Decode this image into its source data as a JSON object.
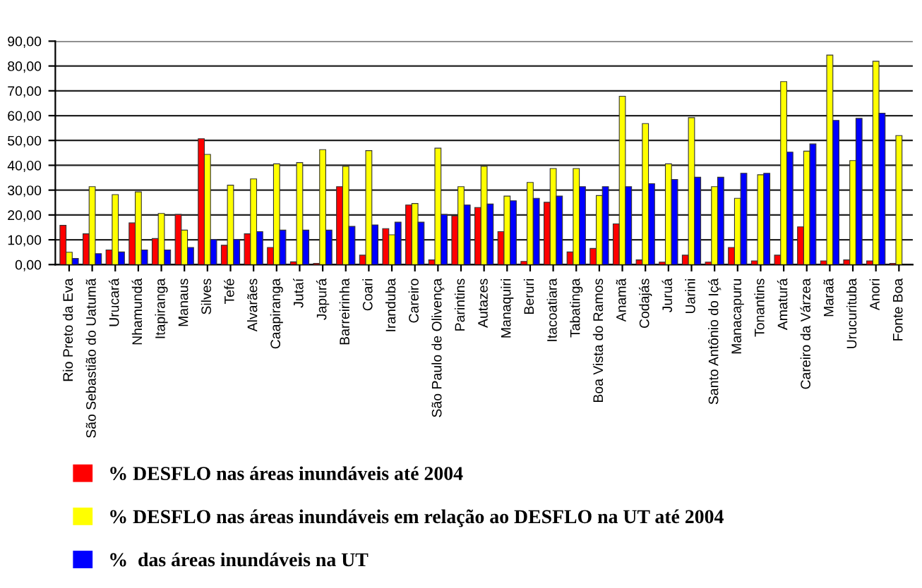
{
  "chart_data": {
    "type": "bar",
    "categories": [
      "Rio Preto da Eva",
      "São Sebastião do Uatumã",
      "Urucará",
      "Nhamundá",
      "Itapiranga",
      "Manaus",
      "Silves",
      "Tefé",
      "Alvarães",
      "Caapiranga",
      "Jutaí",
      "Japurá",
      "Barreirinha",
      "Coari",
      "Iranduba",
      "Careiro",
      "São Paulo de Olivença",
      "Parintins",
      "Autazes",
      "Manaquiri",
      "Beruri",
      "Itacoatiara",
      "Tabatinga",
      "Boa Vista do Ramos",
      "Anamã",
      "Codajás",
      "Juruá",
      "Uarini",
      "Santo Antônio do Içá",
      "Manacapuru",
      "Tonantins",
      "Amaturá",
      "Careiro da Várzea",
      "Maraã",
      "Urucurituba",
      "Anori",
      "Fonte Boa"
    ],
    "series": [
      {
        "name": "% DESFLO nas áreas inundáveis até 2004",
        "color": "#ff0000",
        "values": [
          15.8,
          12.4,
          5.9,
          16.8,
          10.5,
          20.2,
          50.7,
          7.8,
          12.4,
          6.9,
          1.1,
          0.5,
          31.4,
          3.8,
          14.5,
          24.0,
          1.9,
          19.6,
          23.0,
          13.3,
          1.3,
          25.1,
          5.1,
          6.5,
          16.4,
          1.9,
          1.0,
          3.8,
          1.0,
          6.9,
          1.5,
          3.8,
          15.2,
          1.5,
          1.9,
          1.5,
          0.5
        ]
      },
      {
        "name": "% DESFLO nas áreas inundáveis em relação ao DESFLO na UT até 2004",
        "color": "#ffff00",
        "values": [
          5.0,
          31.4,
          28.2,
          29.3,
          20.6,
          13.9,
          44.4,
          32.0,
          34.5,
          40.6,
          41.1,
          46.3,
          39.6,
          45.9,
          12.0,
          24.6,
          46.9,
          31.4,
          39.6,
          27.6,
          33.1,
          38.7,
          38.7,
          27.8,
          67.8,
          56.8,
          40.6,
          59.2,
          31.4,
          26.7,
          36.2,
          73.7,
          45.7,
          84.4,
          41.9,
          81.9,
          52.0
        ]
      },
      {
        "name": "%  das áreas inundáveis na UT",
        "color": "#0000ff",
        "values": [
          2.5,
          4.4,
          5.1,
          5.9,
          5.9,
          6.9,
          10.1,
          10.1,
          13.3,
          13.9,
          13.9,
          13.9,
          15.4,
          16.0,
          17.1,
          17.1,
          20.2,
          24.0,
          24.4,
          25.7,
          26.7,
          27.6,
          31.4,
          31.4,
          31.4,
          32.6,
          34.3,
          35.2,
          35.2,
          36.8,
          36.8,
          45.3,
          48.6,
          58.1,
          58.9,
          61.0,
          null
        ]
      }
    ],
    "ylim": [
      0,
      90
    ],
    "yticks": [
      {
        "value": 0,
        "label": "0,00"
      },
      {
        "value": 10,
        "label": "10,00"
      },
      {
        "value": 20,
        "label": "20,00"
      },
      {
        "value": 30,
        "label": "30,00"
      },
      {
        "value": 40,
        "label": "40,00"
      },
      {
        "value": 50,
        "label": "50,00"
      },
      {
        "value": 60,
        "label": "60,00"
      },
      {
        "value": 70,
        "label": "70,00"
      },
      {
        "value": 80,
        "label": "80,00"
      },
      {
        "value": 90,
        "label": "90,00"
      }
    ],
    "grid": "y",
    "legend": "bottom"
  }
}
